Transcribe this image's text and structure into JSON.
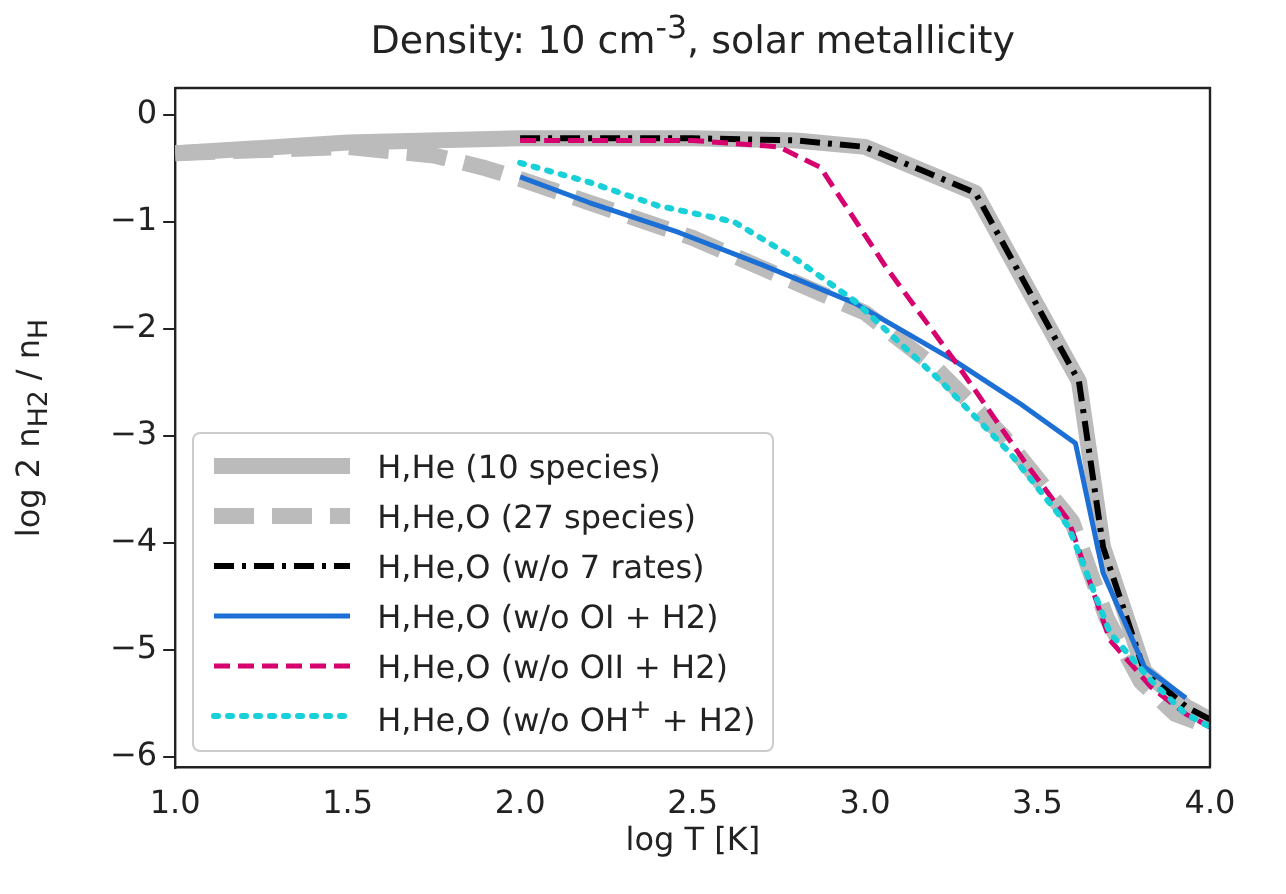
{
  "chart_data": {
    "type": "line",
    "title": "Density: 10 cm$^{-3}$, solar metallicity",
    "xlabel": "log T [K]",
    "ylabel": "log 2 n$_{H2}$ / n$_{H}$",
    "xlim": [
      1.0,
      4.0
    ],
    "xticks": [
      {
        "value": 1,
        "label": "1.0"
      },
      {
        "value": 1.5,
        "label": "1.5"
      },
      {
        "value": 2,
        "label": "2.0"
      },
      {
        "value": 2.5,
        "label": "2.5"
      },
      {
        "value": 3,
        "label": "3.0"
      },
      {
        "value": 3.5,
        "label": "3.5"
      },
      {
        "value": 4,
        "label": "4.0"
      }
    ],
    "ylim": [
      -6.1,
      0.25
    ],
    "yticks": [
      {
        "value": 0,
        "label": "0"
      },
      {
        "value": -1,
        "label": "−1"
      },
      {
        "value": -2,
        "label": "−2"
      },
      {
        "value": -3,
        "label": "−3"
      },
      {
        "value": -4,
        "label": "−4"
      },
      {
        "value": -5,
        "label": "−5"
      },
      {
        "value": -6,
        "label": "−6"
      }
    ],
    "grid": false,
    "legend": "bottom left",
    "marker": "none",
    "series": [
      {
        "name": "H,He (10 species)",
        "color": "#bbbbbb",
        "line_style": "solid",
        "x": [
          1.0,
          1.5,
          2.0,
          2.5,
          2.8,
          3.0,
          3.18,
          3.32,
          3.5,
          3.62,
          3.69,
          3.81,
          3.93,
          4.0
        ],
        "values": [
          -0.36,
          -0.26,
          -0.22,
          -0.22,
          -0.24,
          -0.3,
          -0.54,
          -0.73,
          -1.79,
          -2.49,
          -4.04,
          -5.2,
          -5.53,
          -5.65
        ]
      },
      {
        "name": "H,He,O (27 species)",
        "color": "#bbbbbb",
        "line_style": "dashed",
        "x": [
          1.0,
          1.5,
          1.75,
          1.9,
          2.0,
          2.5,
          3.0,
          3.2,
          3.4,
          3.6,
          3.7,
          3.8,
          3.9,
          4.0
        ],
        "values": [
          -0.36,
          -0.3,
          -0.38,
          -0.5,
          -0.6,
          -1.15,
          -1.85,
          -2.35,
          -3.0,
          -3.8,
          -4.7,
          -5.3,
          -5.6,
          -5.72
        ]
      },
      {
        "name": "H,He,O (w/o 7 rates)",
        "color": "#000000",
        "line_style": "dashdot",
        "x": [
          2.0,
          2.5,
          2.8,
          3.0,
          3.18,
          3.32,
          3.5,
          3.62,
          3.69,
          3.81,
          3.93,
          4.0
        ],
        "values": [
          -0.22,
          -0.22,
          -0.24,
          -0.3,
          -0.54,
          -0.73,
          -1.79,
          -2.49,
          -4.04,
          -5.2,
          -5.53,
          -5.65
        ]
      },
      {
        "name": "H,He,O (w/o OI + H2)",
        "color": "#1c6fd4",
        "line_style": "solid",
        "x": [
          2.0,
          2.2,
          2.46,
          2.7,
          2.97,
          3.26,
          3.45,
          3.61,
          3.69,
          3.81,
          3.93
        ],
        "values": [
          -0.58,
          -0.82,
          -1.1,
          -1.4,
          -1.76,
          -2.3,
          -2.7,
          -3.07,
          -4.28,
          -5.16,
          -5.45
        ]
      },
      {
        "name": "H,He,O (w/o OII + H2)",
        "color": "#d6006f",
        "line_style": "dashed",
        "x": [
          2.0,
          2.5,
          2.75,
          2.87,
          3.06,
          3.26,
          3.46,
          3.59,
          3.71,
          3.83,
          3.93,
          4.0
        ],
        "values": [
          -0.24,
          -0.24,
          -0.3,
          -0.49,
          -1.42,
          -2.3,
          -3.23,
          -3.79,
          -4.91,
          -5.35,
          -5.6,
          -5.72
        ]
      },
      {
        "name": "H,He,O (w/o OH$^{+}$ + H2)",
        "color": "#17d0d8",
        "line_style": "dotted",
        "x": [
          2.0,
          2.2,
          2.4,
          2.62,
          2.8,
          2.97,
          3.22,
          3.42,
          3.59,
          3.71,
          3.83,
          3.93,
          4.0
        ],
        "values": [
          -0.45,
          -0.63,
          -0.85,
          -1.0,
          -1.35,
          -1.74,
          -2.49,
          -3.16,
          -3.85,
          -4.84,
          -5.29,
          -5.6,
          -5.72
        ]
      }
    ]
  }
}
